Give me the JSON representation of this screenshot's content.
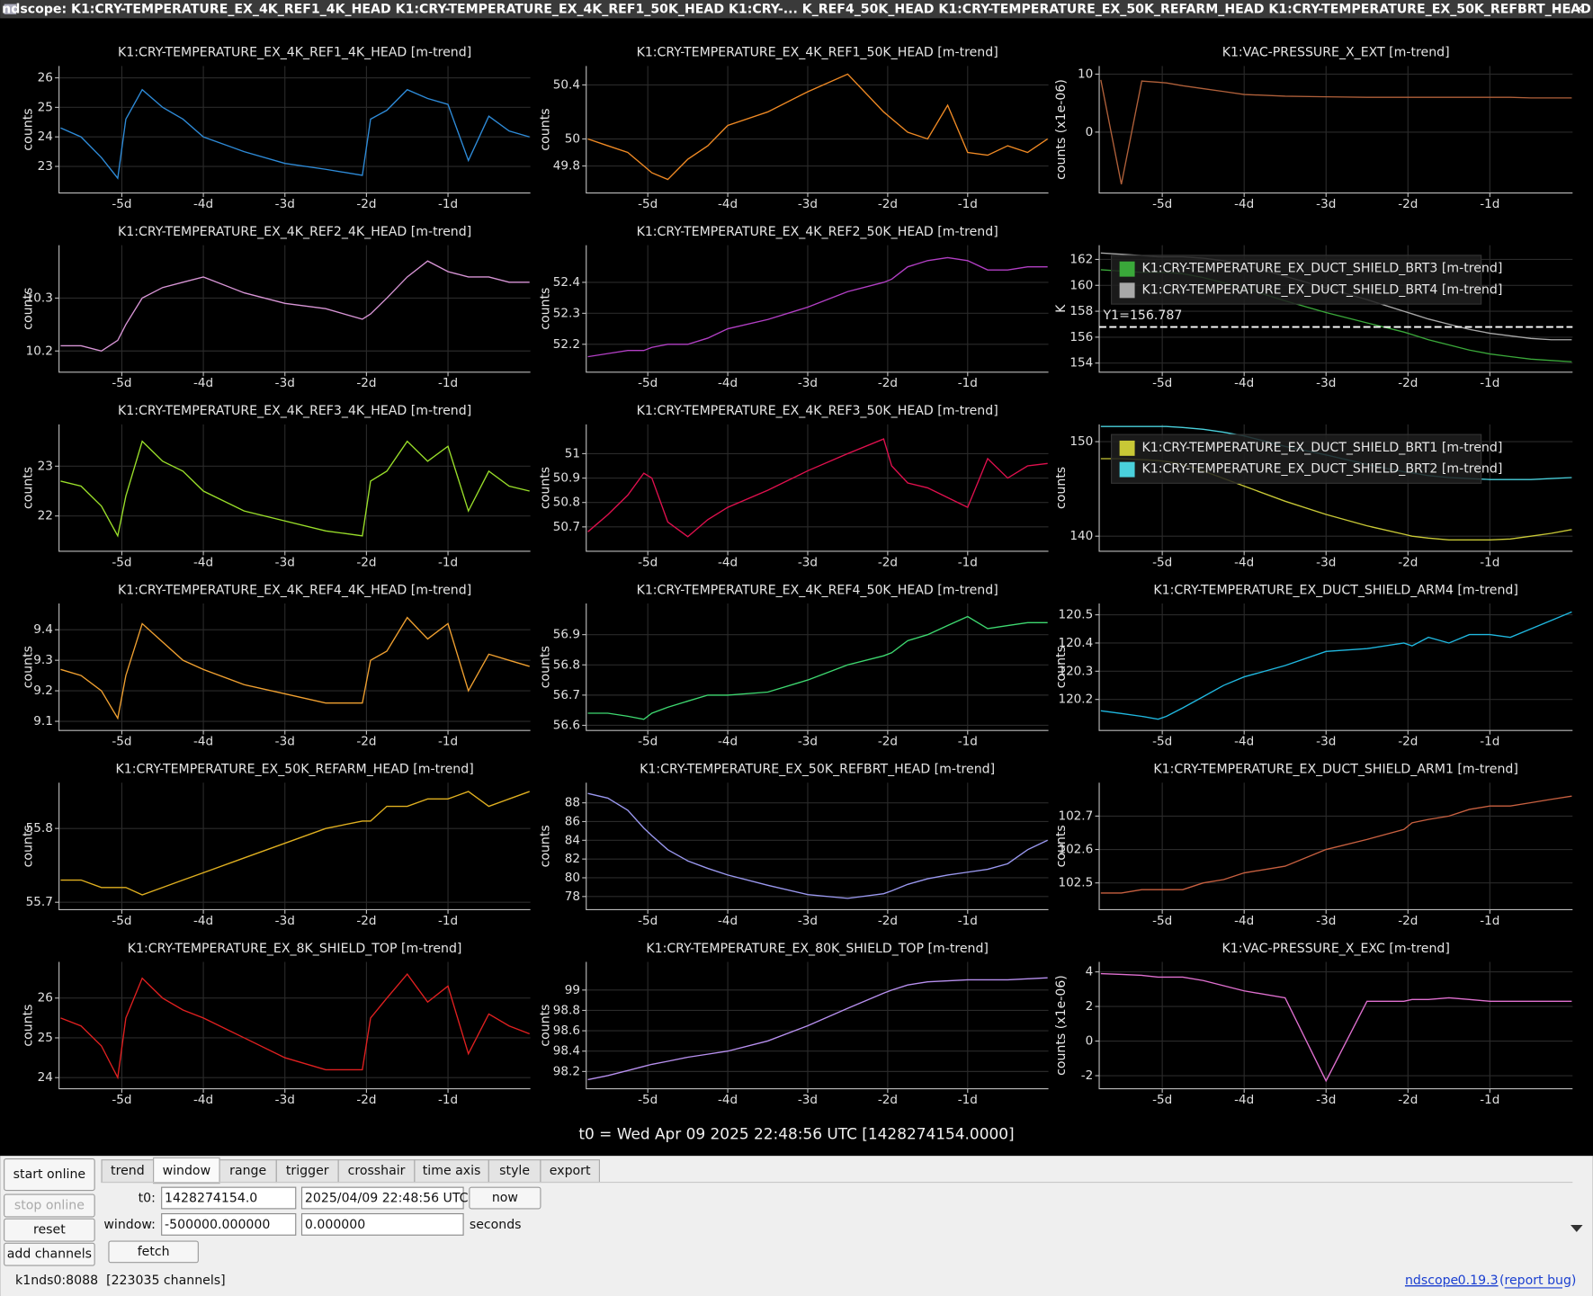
{
  "window_title": "ndscope: K1:CRY-TEMPERATURE_EX_4K_REF1_4K_HEAD K1:CRY-TEMPERATURE_EX_4K_REF1_50K_HEAD K1:CRY-... K_REF4_50K_HEAD K1:CRY-TEMPERATURE_EX_50K_REFARM_HEAD K1:CRY-TEMPERATURE_EX_50K_REFBRT_HEAD",
  "xlim": [
    -5.77,
    0.01
  ],
  "xticks": [
    {
      "value": -5,
      "label": "-5d"
    },
    {
      "value": -4,
      "label": "-4d"
    },
    {
      "value": -3,
      "label": "-3d"
    },
    {
      "value": -2,
      "label": "-2d"
    },
    {
      "value": -1,
      "label": "-1d"
    }
  ],
  "time_x": [
    -5.75,
    -5.5,
    -5.25,
    -5.05,
    -4.95,
    -4.75,
    -4.5,
    -4.25,
    -4,
    -3.5,
    -3,
    -2.5,
    -2.05,
    -1.95,
    -1.75,
    -1.5,
    -1.25,
    -1,
    -0.75,
    -0.5,
    -0.25,
    0
  ],
  "plots": [
    {
      "title": "K1:CRY-TEMPERATURE_EX_4K_REF1_4K_HEAD [m-trend]",
      "ylabel": "counts",
      "ylim": [
        22.1,
        26.4
      ],
      "yticks": [
        23,
        24,
        25,
        26
      ],
      "traces": [
        {
          "color": "#2e8bd8",
          "values": [
            24.3,
            24.0,
            23.3,
            22.6,
            24.6,
            25.6,
            25.0,
            24.6,
            24.0,
            23.5,
            23.1,
            22.9,
            22.7,
            24.6,
            24.9,
            25.6,
            25.3,
            25.1,
            23.2,
            24.7,
            24.2,
            24.0
          ]
        }
      ]
    },
    {
      "title": "K1:CRY-TEMPERATURE_EX_4K_REF1_50K_HEAD [m-trend]",
      "ylabel": "counts",
      "ylim": [
        49.6,
        50.54
      ],
      "yticks": [
        49.8,
        50,
        50.4
      ],
      "traces": [
        {
          "color": "#f08a24",
          "values": [
            50.0,
            49.95,
            49.9,
            49.8,
            49.75,
            49.7,
            49.85,
            49.95,
            50.1,
            50.2,
            50.35,
            50.48,
            50.2,
            50.15,
            50.05,
            50.0,
            50.25,
            49.9,
            49.88,
            49.95,
            49.9,
            50.0
          ]
        }
      ]
    },
    {
      "title": "K1:VAC-PRESSURE_X_EXT [m-trend]",
      "ylabel": "counts (x1e-06)",
      "ylim": [
        -10.5,
        11.4
      ],
      "yticks": [
        0,
        10
      ],
      "traces": [
        {
          "color": "#b0603a",
          "values": [
            9,
            -9,
            8.8,
            8.6,
            8.5,
            8,
            7.5,
            7,
            6.5,
            6.2,
            6.1,
            6.0,
            6.0,
            6.0,
            6.0,
            6.0,
            6.0,
            6.0,
            6.0,
            5.9,
            5.9,
            5.9
          ]
        }
      ]
    },
    {
      "title": "K1:CRY-TEMPERATURE_EX_4K_REF2_4K_HEAD [m-trend]",
      "ylabel": "counts",
      "ylim": [
        10.16,
        10.4
      ],
      "yticks": [
        10.2,
        10.3
      ],
      "traces": [
        {
          "color": "#d895d6",
          "values": [
            10.21,
            10.21,
            10.2,
            10.22,
            10.25,
            10.3,
            10.32,
            10.33,
            10.34,
            10.31,
            10.29,
            10.28,
            10.26,
            10.27,
            10.3,
            10.34,
            10.37,
            10.35,
            10.34,
            10.34,
            10.33,
            10.33
          ]
        }
      ]
    },
    {
      "title": "K1:CRY-TEMPERATURE_EX_4K_REF2_50K_HEAD [m-trend]",
      "ylabel": "counts",
      "ylim": [
        52.11,
        52.52
      ],
      "yticks": [
        52.2,
        52.3,
        52.4
      ],
      "traces": [
        {
          "color": "#b23fc4",
          "values": [
            52.16,
            52.17,
            52.18,
            52.18,
            52.19,
            52.2,
            52.2,
            52.22,
            52.25,
            52.28,
            52.32,
            52.37,
            52.4,
            52.41,
            52.45,
            52.47,
            52.48,
            52.47,
            52.44,
            52.44,
            52.45,
            52.45
          ]
        }
      ]
    },
    {
      "title": "",
      "ylabel": "K",
      "ylim": [
        153.3,
        163.1
      ],
      "yticks": [
        154,
        156,
        158,
        160,
        162
      ],
      "cursor": {
        "label": "Y1=156.787",
        "value": 156.787
      },
      "traces": [
        {
          "name": "K1:CRY-TEMPERATURE_EX_DUCT_SHIELD_BRT3 [m-trend]",
          "color": "#3aa83a",
          "values": [
            161.2,
            161.1,
            161.0,
            161,
            161,
            160.9,
            160.6,
            160.2,
            159.8,
            158.8,
            157.9,
            157.1,
            156.4,
            156.2,
            155.8,
            155.4,
            155,
            154.7,
            154.5,
            154.3,
            154.2,
            154.1
          ]
        },
        {
          "name": "K1:CRY-TEMPERATURE_EX_DUCT_SHIELD_BRT4 [m-trend]",
          "color": "#a8a8a8",
          "values": [
            162.5,
            162.4,
            162.3,
            162.2,
            162.2,
            162.2,
            162.1,
            161.9,
            161.6,
            160.7,
            159.8,
            158.9,
            158.0,
            157.8,
            157.4,
            157.0,
            156.6,
            156.3,
            156.1,
            155.9,
            155.8,
            155.8
          ]
        }
      ]
    },
    {
      "title": "K1:CRY-TEMPERATURE_EX_4K_REF3_4K_HEAD [m-trend]",
      "ylabel": "counts",
      "ylim": [
        21.29,
        23.84
      ],
      "yticks": [
        22,
        23
      ],
      "traces": [
        {
          "color": "#9adf2a",
          "values": [
            22.7,
            22.6,
            22.2,
            21.6,
            22.4,
            23.5,
            23.1,
            22.9,
            22.5,
            22.1,
            21.9,
            21.7,
            21.6,
            22.7,
            22.9,
            23.5,
            23.1,
            23.4,
            22.1,
            22.9,
            22.6,
            22.5
          ]
        }
      ]
    },
    {
      "title": "K1:CRY-TEMPERATURE_EX_4K_REF3_50K_HEAD [m-trend]",
      "ylabel": "counts",
      "ylim": [
        50.6,
        51.12
      ],
      "yticks": [
        50.7,
        50.8,
        50.9,
        51
      ],
      "traces": [
        {
          "color": "#e0104e",
          "values": [
            50.68,
            50.75,
            50.83,
            50.92,
            50.9,
            50.72,
            50.66,
            50.73,
            50.78,
            50.85,
            50.93,
            51.0,
            51.06,
            50.95,
            50.88,
            50.86,
            50.82,
            50.78,
            50.98,
            50.9,
            50.95,
            50.96
          ]
        }
      ]
    },
    {
      "title": "",
      "ylabel": "counts",
      "ylim": [
        138.4,
        151.83
      ],
      "yticks": [
        140,
        150
      ],
      "traces": [
        {
          "name": "K1:CRY-TEMPERATURE_EX_DUCT_SHIELD_BRT1 [m-trend]",
          "color": "#c8c836",
          "values": [
            148.2,
            148.2,
            148.1,
            148,
            147.9,
            147.6,
            146.9,
            146.1,
            145.3,
            143.7,
            142.3,
            141.1,
            140.2,
            140.0,
            139.8,
            139.6,
            139.6,
            139.6,
            139.7,
            140.0,
            140.3,
            140.7
          ]
        },
        {
          "name": "K1:CRY-TEMPERATURE_EX_DUCT_SHIELD_BRT2 [m-trend]",
          "color": "#4ad0dc",
          "values": [
            151.6,
            151.6,
            151.6,
            151.6,
            151.6,
            151.5,
            151.3,
            151,
            150.6,
            149.5,
            148.6,
            147.6,
            146.8,
            146.7,
            146.4,
            146.2,
            146.1,
            146.0,
            146.0,
            146.0,
            146.1,
            146.2
          ]
        }
      ]
    },
    {
      "title": "K1:CRY-TEMPERATURE_EX_4K_REF4_4K_HEAD [m-trend]",
      "ylabel": "counts",
      "ylim": [
        9.07,
        9.486
      ],
      "yticks": [
        9.1,
        9.2,
        9.3,
        9.4
      ],
      "traces": [
        {
          "color": "#f0a030",
          "values": [
            9.27,
            9.25,
            9.2,
            9.11,
            9.25,
            9.42,
            9.36,
            9.3,
            9.27,
            9.22,
            9.19,
            9.16,
            9.16,
            9.3,
            9.33,
            9.44,
            9.37,
            9.42,
            9.2,
            9.32,
            9.3,
            9.28
          ]
        }
      ]
    },
    {
      "title": "K1:CRY-TEMPERATURE_EX_4K_REF4_50K_HEAD [m-trend]",
      "ylabel": "counts",
      "ylim": [
        56.583,
        57.003
      ],
      "yticks": [
        56.6,
        56.7,
        56.8,
        56.9
      ],
      "traces": [
        {
          "color": "#3ed870",
          "values": [
            56.64,
            56.64,
            56.63,
            56.62,
            56.64,
            56.66,
            56.68,
            56.7,
            56.7,
            56.71,
            56.75,
            56.8,
            56.83,
            56.84,
            56.88,
            56.9,
            56.93,
            56.96,
            56.92,
            56.93,
            56.94,
            56.94
          ]
        }
      ]
    },
    {
      "title": "K1:CRY-TEMPERATURE_EX_DUCT_SHIELD_ARM4 [m-trend]",
      "ylabel": "counts",
      "ylim": [
        120.09,
        120.54
      ],
      "yticks": [
        120.2,
        120.3,
        120.4,
        120.5
      ],
      "traces": [
        {
          "color": "#20b8e0",
          "values": [
            120.16,
            120.15,
            120.14,
            120.13,
            120.14,
            120.17,
            120.21,
            120.25,
            120.28,
            120.32,
            120.37,
            120.38,
            120.4,
            120.39,
            120.42,
            120.4,
            120.43,
            120.43,
            120.42,
            120.45,
            120.48,
            120.51
          ]
        }
      ]
    },
    {
      "title": "K1:CRY-TEMPERATURE_EX_50K_REFARM_HEAD [m-trend]",
      "ylabel": "counts",
      "ylim": [
        55.69,
        55.862
      ],
      "yticks": [
        55.7,
        55.8
      ],
      "traces": [
        {
          "color": "#e0b020",
          "values": [
            55.73,
            55.73,
            55.72,
            55.72,
            55.72,
            55.71,
            55.72,
            55.73,
            55.74,
            55.76,
            55.78,
            55.8,
            55.81,
            55.81,
            55.83,
            55.83,
            55.84,
            55.84,
            55.85,
            55.83,
            55.84,
            55.85
          ]
        }
      ]
    },
    {
      "title": "K1:CRY-TEMPERATURE_EX_50K_REFBRT_HEAD [m-trend]",
      "ylabel": "counts",
      "ylim": [
        76.6,
        90.15
      ],
      "yticks": [
        78,
        80,
        82,
        84,
        86,
        88
      ],
      "traces": [
        {
          "color": "#9a98f0",
          "values": [
            89,
            88.5,
            87.2,
            85.3,
            84.5,
            83,
            81.8,
            81,
            80.3,
            79.2,
            78.2,
            77.8,
            78.3,
            78.6,
            79.3,
            79.9,
            80.3,
            80.6,
            80.9,
            81.5,
            83,
            84
          ]
        }
      ]
    },
    {
      "title": "K1:CRY-TEMPERATURE_EX_DUCT_SHIELD_ARM1 [m-trend]",
      "ylabel": "counts",
      "ylim": [
        102.42,
        102.8
      ],
      "yticks": [
        102.5,
        102.6,
        102.7
      ],
      "traces": [
        {
          "color": "#c86040",
          "values": [
            102.47,
            102.47,
            102.48,
            102.48,
            102.48,
            102.48,
            102.5,
            102.51,
            102.53,
            102.55,
            102.6,
            102.63,
            102.66,
            102.68,
            102.69,
            102.7,
            102.72,
            102.73,
            102.73,
            102.74,
            102.75,
            102.76
          ]
        }
      ]
    },
    {
      "title": "K1:CRY-TEMPERATURE_EX_8K_SHIELD_TOP [m-trend]",
      "ylabel": "counts",
      "ylim": [
        23.72,
        26.91
      ],
      "yticks": [
        24,
        25,
        26
      ],
      "traces": [
        {
          "color": "#e02020",
          "values": [
            25.5,
            25.3,
            24.8,
            24.0,
            25.5,
            26.5,
            26.0,
            25.7,
            25.5,
            25.0,
            24.5,
            24.2,
            24.2,
            25.5,
            26.0,
            26.6,
            25.9,
            26.3,
            24.6,
            25.6,
            25.3,
            25.1
          ]
        }
      ]
    },
    {
      "title": "K1:CRY-TEMPERATURE_EX_80K_SHIELD_TOP [m-trend]",
      "ylabel": "counts",
      "ylim": [
        98.03,
        99.277
      ],
      "yticks": [
        98.2,
        98.4,
        98.6,
        98.8,
        99
      ],
      "traces": [
        {
          "color": "#b890f0",
          "values": [
            98.12,
            98.16,
            98.21,
            98.25,
            98.27,
            98.3,
            98.34,
            98.37,
            98.4,
            98.5,
            98.65,
            98.82,
            98.97,
            99.0,
            99.05,
            99.08,
            99.09,
            99.1,
            99.1,
            99.1,
            99.11,
            99.12
          ]
        }
      ]
    },
    {
      "title": "K1:VAC-PRESSURE_X_EXC [m-trend]",
      "ylabel": "counts (x1e-06)",
      "ylim": [
        -2.76,
        4.58
      ],
      "yticks": [
        -2,
        0,
        2,
        4
      ],
      "traces": [
        {
          "color": "#e070d0",
          "values": [
            3.9,
            3.85,
            3.8,
            3.7,
            3.7,
            3.7,
            3.5,
            3.2,
            2.9,
            2.5,
            -2.3,
            2.3,
            2.3,
            2.4,
            2.4,
            2.5,
            2.4,
            2.3,
            2.3,
            2.3,
            2.3,
            2.3
          ]
        }
      ]
    }
  ],
  "t0_line": "t0 = Wed Apr 09 2025 22:48:56 UTC [1428274154.0000]",
  "buttons": [
    "start online",
    "stop online",
    "reset",
    "add channels"
  ],
  "tabs": [
    "trend",
    "window",
    "range",
    "trigger",
    "crosshair",
    "time axis",
    "style",
    "export"
  ],
  "window_tab": {
    "t0_label": "t0:",
    "t0_gps": "1428274154.0",
    "t0_utc": "2025/04/09 22:48:56 UTC",
    "now": "now",
    "window_label": "window:",
    "window_start": "-500000.000000",
    "window_end": "0.000000",
    "units": "seconds",
    "fetch": "fetch"
  },
  "footer": {
    "server": "k1nds0:8088  [223035 channels]",
    "app": "ndscope",
    "version": "0.19.3",
    "report": "(report bug)"
  }
}
